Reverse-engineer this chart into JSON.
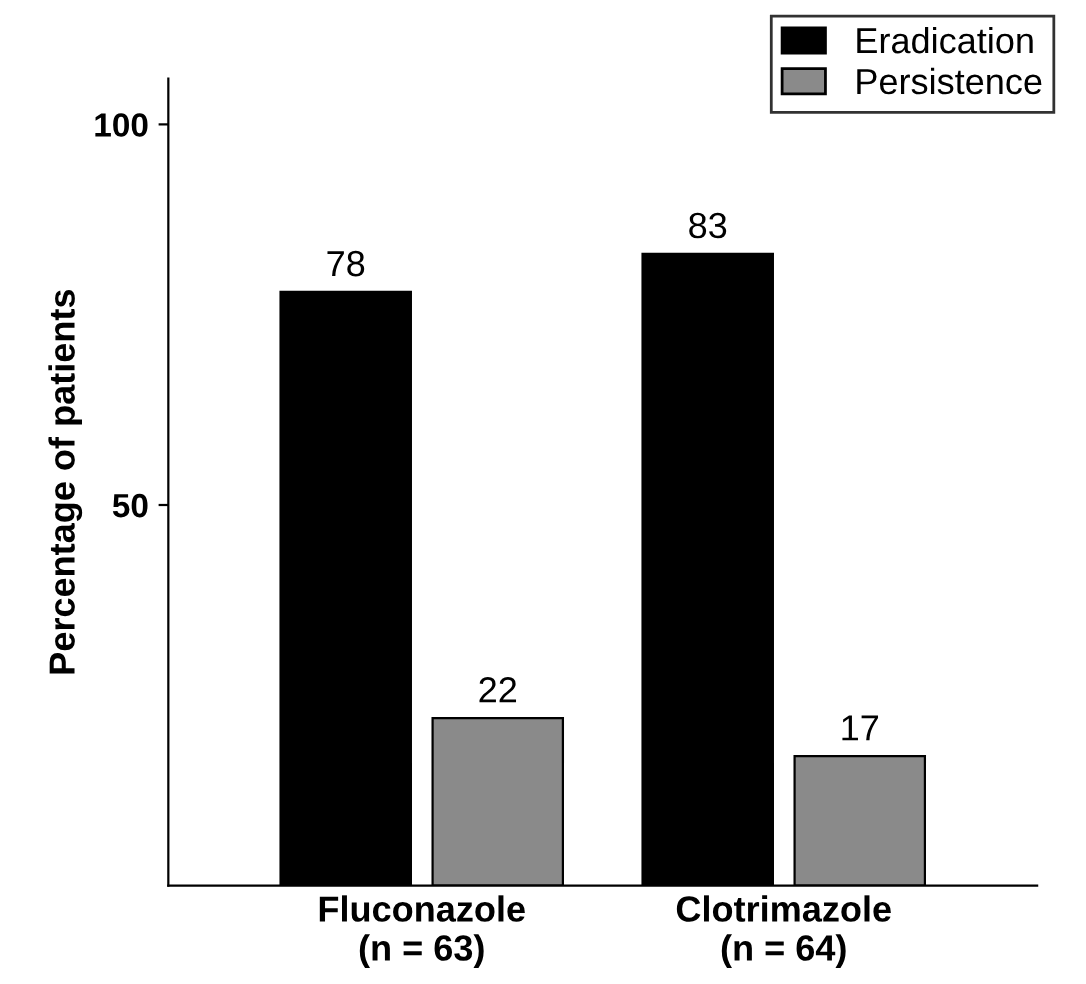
{
  "chart_data": {
    "type": "bar",
    "ylabel": "Percentage of patients",
    "categories": [
      "Fluconazole\n(n = 63)",
      "Clotrimazole\n(n = 64)"
    ],
    "series": [
      {
        "name": "Eradication",
        "color": "#000000",
        "values": [
          78,
          83
        ]
      },
      {
        "name": "Persistence",
        "color": "#8a8a8a",
        "values": [
          22,
          17
        ]
      }
    ],
    "ylim": [
      0,
      106
    ],
    "yticks": [
      50,
      100
    ],
    "data_labels": true,
    "legend": "top right",
    "grid": false
  }
}
